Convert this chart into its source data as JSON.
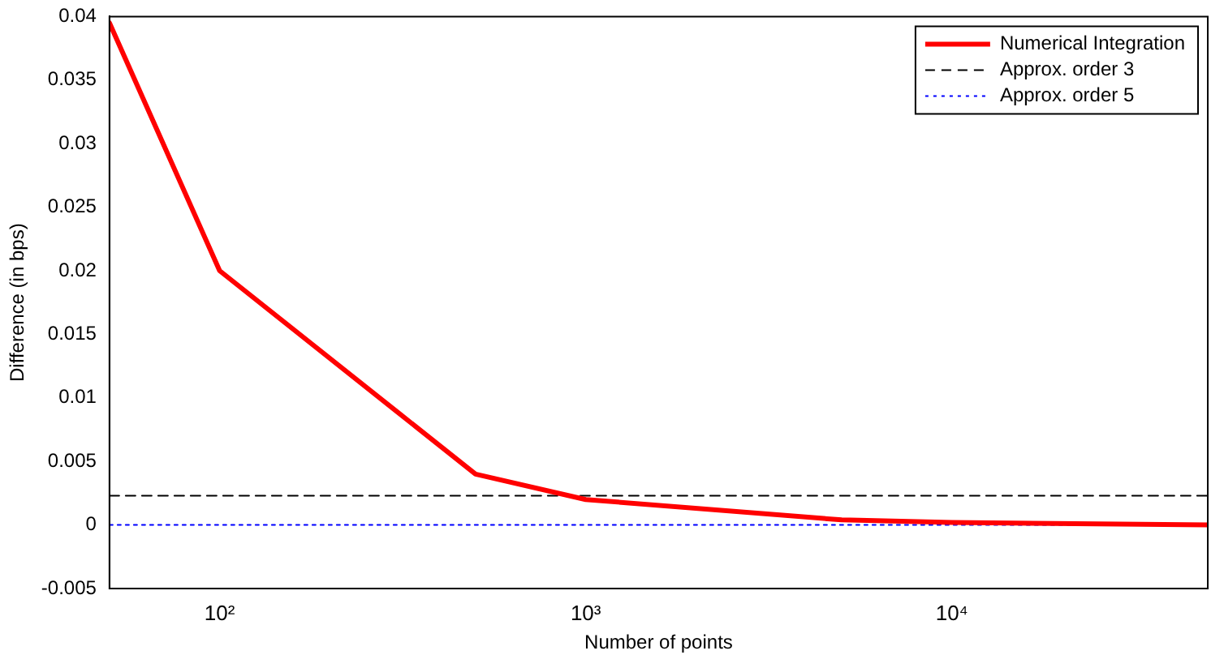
{
  "chart_data": {
    "type": "line",
    "xlabel": "Number of points",
    "ylabel": "Difference (in bps)",
    "x": [
      50,
      100,
      500,
      1000,
      5000,
      10000,
      50000
    ],
    "series": [
      {
        "name": "Numerical Integration",
        "color": "#ff0000",
        "values": [
          0.0395,
          0.02,
          0.004,
          0.002,
          0.0004,
          0.0002,
          0.0
        ],
        "line_style": "solid"
      },
      {
        "name": "Approx. order 3",
        "color": "#000000",
        "values": [
          0.0023,
          0.0023,
          0.0023,
          0.0023,
          0.0023,
          0.0023,
          0.0023
        ],
        "line_style": "dashed"
      },
      {
        "name": "Approx. order 5",
        "color": "#0000ff",
        "values": [
          0.0,
          0.0,
          0.0,
          0.0,
          0.0,
          0.0,
          0.0
        ],
        "line_style": "dotted"
      }
    ],
    "log": "x",
    "xlim": [
      50,
      50000
    ],
    "xticks": [
      {
        "value": 100,
        "label": "10²"
      },
      {
        "value": 1000,
        "label": "10³"
      },
      {
        "value": 10000,
        "label": "10⁴"
      }
    ],
    "ylim": [
      -0.005,
      0.04
    ],
    "yticks": [
      -0.005,
      0,
      0.005,
      0.01,
      0.015,
      0.02,
      0.025,
      0.03,
      0.035,
      0.04
    ],
    "grid": false,
    "legend": "top right",
    "marker": "none"
  }
}
